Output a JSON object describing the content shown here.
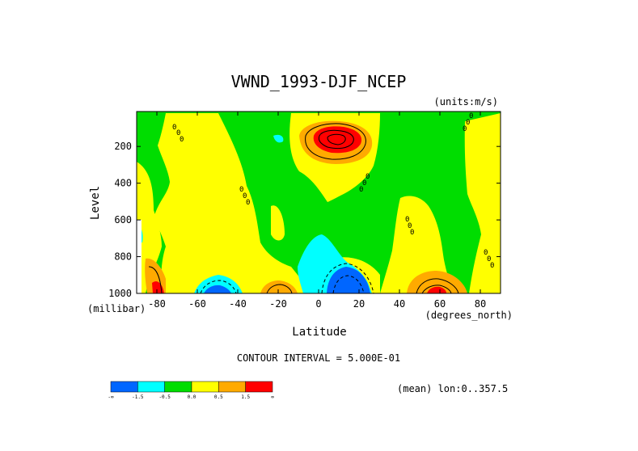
{
  "chart_data": {
    "type": "heatmap",
    "subtype": "filled contour (latitude-pressure cross section)",
    "title": "VWND_1993-DJF_NCEP",
    "units_label": "(units:m/s)",
    "xlabel": "Latitude",
    "x_units_label": "(degrees_north)",
    "ylabel": "Level",
    "y_units_label": "(millibar)",
    "xlim": [
      -90,
      90
    ],
    "ylim": [
      1000,
      10
    ],
    "y_inverted": true,
    "x_ticks": [
      -80,
      -60,
      -40,
      -20,
      0,
      20,
      40,
      60,
      80
    ],
    "x_tick_labels": [
      "-80",
      "-60",
      "-40",
      "-20",
      "0",
      "20",
      "40",
      "60",
      "80"
    ],
    "y_ticks": [
      200,
      400,
      600,
      800,
      1000
    ],
    "y_tick_labels": [
      "200",
      "400",
      "600",
      "800",
      "1000"
    ],
    "contour_interval_text": "CONTOUR INTERVAL = 5.000E-01",
    "mean_text": "(mean) lon:0..357.5",
    "contour_label_text": "0",
    "colorbar": {
      "bins": [
        {
          "range": "< -1.5",
          "color": "#0066ff"
        },
        {
          "range": "-1.5 to -0.5",
          "color": "#00ffff"
        },
        {
          "range": "-0.5 to 0.0",
          "color": "#00dd00"
        },
        {
          "range": "0.0 to 0.5",
          "color": "#ffff00"
        },
        {
          "range": "0.5 to 1.5",
          "color": "#ffaa00"
        },
        {
          "range": "> 1.5",
          "color": "#ff0000"
        }
      ],
      "tick_labels": [
        "-∞",
        "-1.5",
        "-0.5",
        "0.0",
        "0.5",
        "1.5",
        "∞"
      ]
    },
    "features": [
      {
        "name": "upper-tropospheric maximum",
        "lat": 12,
        "level": 150,
        "approx_value": 2.0,
        "sign": "positive"
      },
      {
        "name": "low-level minimum near equator",
        "lat": 10,
        "level": 950,
        "approx_value": -2.0,
        "sign": "negative"
      },
      {
        "name": "low-level minimum southern midlatitudes",
        "lat": -52,
        "level": 990,
        "approx_value": -1.6,
        "sign": "negative"
      },
      {
        "name": "low-level maximum northern midlatitudes",
        "lat": 58,
        "level": 980,
        "approx_value": 1.8,
        "sign": "positive"
      },
      {
        "name": "low-level maximum near 25S",
        "lat": -22,
        "level": 985,
        "approx_value": 0.8,
        "sign": "positive"
      },
      {
        "name": "Antarctic surface maximum",
        "lat": -84,
        "level": 980,
        "approx_value": 1.6,
        "sign": "positive"
      }
    ]
  }
}
